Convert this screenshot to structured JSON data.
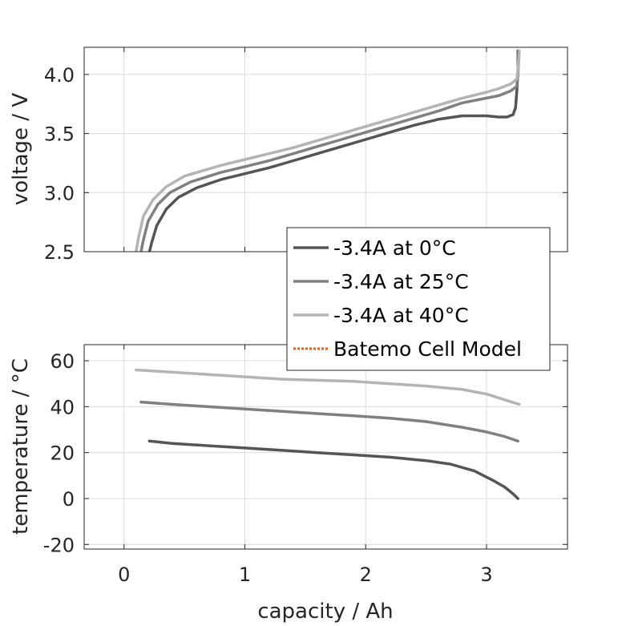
{
  "chart_data": [
    {
      "type": "line",
      "ylabel": "voltage / V",
      "xlim": [
        -0.33,
        3.67
      ],
      "ylim": [
        2.5,
        4.23
      ],
      "xticks": [
        0,
        1,
        2,
        3
      ],
      "yticks": [
        2.5,
        3.0,
        3.5,
        4.0
      ],
      "ytick_labels": [
        "2.5",
        "3.0",
        "3.5",
        "4.0"
      ],
      "grid": true,
      "series": [
        {
          "name": "-3.4A at 0°C",
          "color": "#555555",
          "x": [
            0.21,
            0.23,
            0.27,
            0.35,
            0.45,
            0.6,
            0.8,
            1.0,
            1.2,
            1.4,
            1.6,
            1.8,
            2.0,
            2.2,
            2.4,
            2.6,
            2.8,
            3.0,
            3.1,
            3.17,
            3.22,
            3.24,
            3.25,
            3.26,
            3.26
          ],
          "y": [
            2.5,
            2.58,
            2.72,
            2.86,
            2.96,
            3.04,
            3.11,
            3.16,
            3.21,
            3.27,
            3.33,
            3.39,
            3.45,
            3.51,
            3.57,
            3.62,
            3.65,
            3.65,
            3.64,
            3.64,
            3.66,
            3.72,
            3.85,
            4.02,
            4.2
          ]
        },
        {
          "name": "-3.4A at 25°C",
          "color": "#808080",
          "x": [
            0.14,
            0.16,
            0.2,
            0.28,
            0.38,
            0.55,
            0.8,
            1.0,
            1.2,
            1.4,
            1.6,
            1.8,
            2.0,
            2.2,
            2.4,
            2.6,
            2.8,
            3.0,
            3.1,
            3.2,
            3.25,
            3.26,
            3.27
          ],
          "y": [
            2.5,
            2.6,
            2.76,
            2.9,
            3.0,
            3.09,
            3.17,
            3.22,
            3.27,
            3.33,
            3.39,
            3.45,
            3.51,
            3.57,
            3.63,
            3.69,
            3.76,
            3.8,
            3.82,
            3.86,
            3.9,
            4.0,
            4.2
          ]
        },
        {
          "name": "-3.4A at 40°C",
          "color": "#b4b4b4",
          "x": [
            0.1,
            0.12,
            0.16,
            0.24,
            0.35,
            0.5,
            0.8,
            1.0,
            1.2,
            1.4,
            1.6,
            1.8,
            2.0,
            2.2,
            2.4,
            2.6,
            2.8,
            3.0,
            3.1,
            3.2,
            3.25,
            3.26,
            3.27
          ],
          "y": [
            2.5,
            2.62,
            2.8,
            2.94,
            3.05,
            3.14,
            3.23,
            3.28,
            3.33,
            3.38,
            3.44,
            3.5,
            3.56,
            3.62,
            3.68,
            3.74,
            3.8,
            3.85,
            3.88,
            3.92,
            3.96,
            4.05,
            4.2
          ]
        }
      ],
      "legend": {
        "placement": "bottom-right",
        "entries": [
          {
            "label": "-3.4A at 0°C",
            "color": "#555555",
            "style": "solid"
          },
          {
            "label": "-3.4A at 25°C",
            "color": "#808080",
            "style": "solid"
          },
          {
            "label": "-3.4A at 40°C",
            "color": "#b4b4b4",
            "style": "solid"
          },
          {
            "label": "Batemo Cell Model",
            "color": "#e8601c",
            "style": "dotted"
          }
        ]
      }
    },
    {
      "type": "line",
      "ylabel": "temperature / °C",
      "xlabel": "capacity / Ah",
      "xlim": [
        -0.33,
        3.67
      ],
      "ylim": [
        -22,
        67
      ],
      "xticks": [
        0,
        1,
        2,
        3
      ],
      "xtick_labels": [
        "0",
        "1",
        "2",
        "3"
      ],
      "yticks": [
        -20,
        0,
        20,
        40,
        60
      ],
      "ytick_labels": [
        "-20",
        "0",
        "20",
        "40",
        "60"
      ],
      "grid": true,
      "series": [
        {
          "name": "-3.4A at 0°C",
          "color": "#555555",
          "x": [
            0.21,
            0.4,
            0.7,
            1.0,
            1.3,
            1.6,
            1.9,
            2.2,
            2.5,
            2.7,
            2.9,
            3.05,
            3.15,
            3.22,
            3.26
          ],
          "y": [
            25,
            24,
            23,
            22,
            21,
            20,
            19,
            18,
            16.5,
            15,
            12,
            8,
            5,
            2,
            0
          ]
        },
        {
          "name": "-3.4A at 25°C",
          "color": "#808080",
          "x": [
            0.14,
            0.4,
            0.7,
            1.0,
            1.3,
            1.6,
            1.9,
            2.2,
            2.5,
            2.8,
            3.0,
            3.15,
            3.26
          ],
          "y": [
            42,
            41,
            40,
            39,
            38,
            37,
            36,
            35,
            33.5,
            31,
            29,
            27,
            25
          ]
        },
        {
          "name": "-3.4A at 40°C",
          "color": "#b4b4b4",
          "x": [
            0.1,
            0.4,
            0.7,
            1.0,
            1.3,
            1.6,
            1.9,
            2.2,
            2.5,
            2.8,
            3.0,
            3.15,
            3.27
          ],
          "y": [
            56,
            55,
            54,
            53,
            52,
            51.5,
            51,
            50,
            49,
            47.5,
            45.5,
            43,
            41
          ]
        }
      ]
    }
  ]
}
